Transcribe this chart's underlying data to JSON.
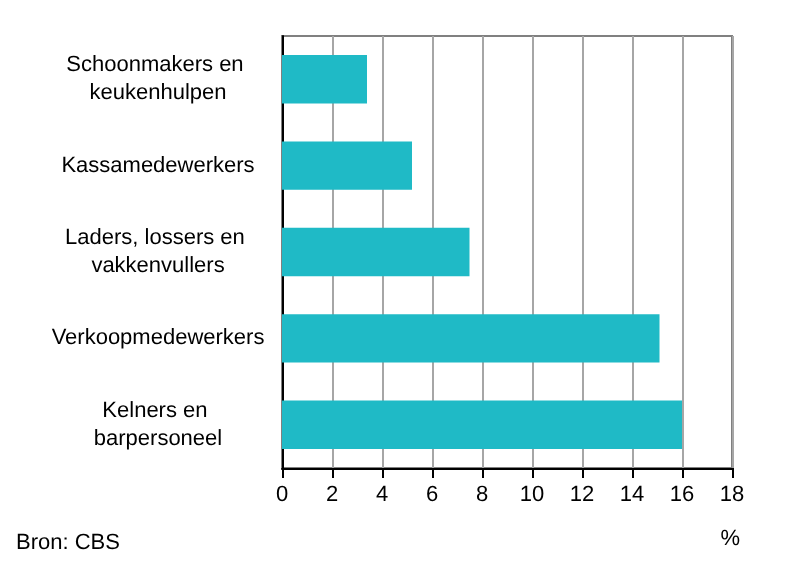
{
  "chart_data": {
    "type": "bar",
    "orientation": "horizontal",
    "categories": [
      "Schoonmakers en keukenhulpen",
      "Kassamedewerkers",
      "Laders, lossers en vakkenvullers",
      "Verkoopmedewerkers",
      "Kelners en barpersoneel"
    ],
    "values": [
      3.4,
      5.2,
      7.5,
      15.1,
      16.0
    ],
    "color": "#1fbac6",
    "xlim": [
      0,
      18
    ],
    "xticks": [
      0,
      2,
      4,
      6,
      8,
      10,
      12,
      14,
      16,
      18
    ],
    "xlabel": "%",
    "grid": "x",
    "annotations": [
      "Bron: CBS"
    ]
  }
}
